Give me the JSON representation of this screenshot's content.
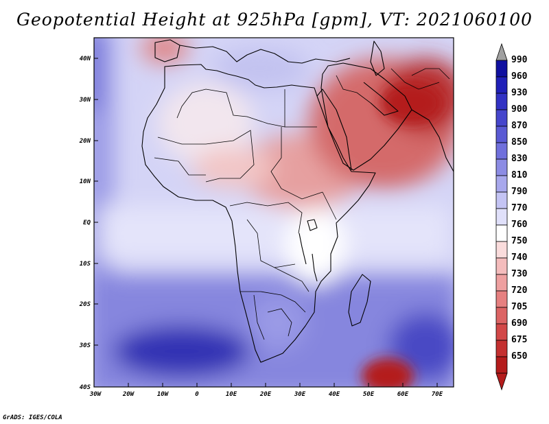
{
  "title": "Geopotential Height at 925hPa [gpm], VT: 2021060100",
  "credit": "GrADS: IGES/COLA",
  "chart_data": {
    "type": "heatmap",
    "variable": "Geopotential Height",
    "level": "925hPa",
    "units": "gpm",
    "valid_time": "2021060100",
    "lon_range": [
      -30,
      75
    ],
    "lat_range": [
      -40,
      44
    ],
    "x_ticks": [
      "30W",
      "20W",
      "10W",
      "0",
      "10E",
      "20E",
      "30E",
      "40E",
      "50E",
      "60E",
      "70E"
    ],
    "y_ticks": [
      "40N",
      "30N",
      "20N",
      "10N",
      "EQ",
      "10S",
      "20S",
      "30S",
      "40S"
    ],
    "colorbar": {
      "labels": [
        "990",
        "960",
        "930",
        "900",
        "870",
        "850",
        "830",
        "810",
        "790",
        "770",
        "760",
        "750",
        "740",
        "730",
        "720",
        "705",
        "690",
        "675",
        "650"
      ],
      "colors": [
        "#a0a0a0",
        "#1010a0",
        "#2020b8",
        "#3232c4",
        "#4646cc",
        "#5a5ad4",
        "#7070dc",
        "#8c8ce4",
        "#a8a8ec",
        "#c4c4f4",
        "#e0e0fa",
        "#ffffff",
        "#fadcdc",
        "#f4bcbc",
        "#eea0a0",
        "#e68080",
        "#dc6464",
        "#d24848",
        "#c43030",
        "#b41c1c",
        "#b41c1c"
      ]
    }
  }
}
